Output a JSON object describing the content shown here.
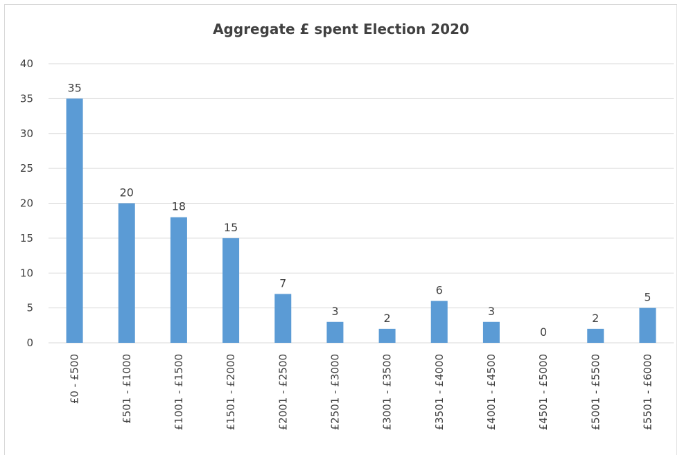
{
  "chart_data": {
    "type": "bar",
    "title": "Aggregate £ spent Election 2020",
    "xlabel": "",
    "ylabel": "",
    "ylim": [
      0,
      40
    ],
    "yticks": [
      0,
      5,
      10,
      15,
      20,
      25,
      30,
      35,
      40
    ],
    "grid": true,
    "legend": "none",
    "bar_color": "#5b9bd5",
    "categories": [
      "£0 - £500",
      "£501 - £1000",
      "£1001 - £1500",
      "£1501 - £2000",
      "£2001 - £2500",
      "£2501 - £3000",
      "£3001 - £3500",
      "£3501 - £4000",
      "£4001 - £4500",
      "£4501 - £5000",
      "£5001 - £5500",
      "£5501 - £6000"
    ],
    "values": [
      35,
      20,
      18,
      15,
      7,
      3,
      2,
      6,
      3,
      0,
      2,
      5
    ]
  }
}
